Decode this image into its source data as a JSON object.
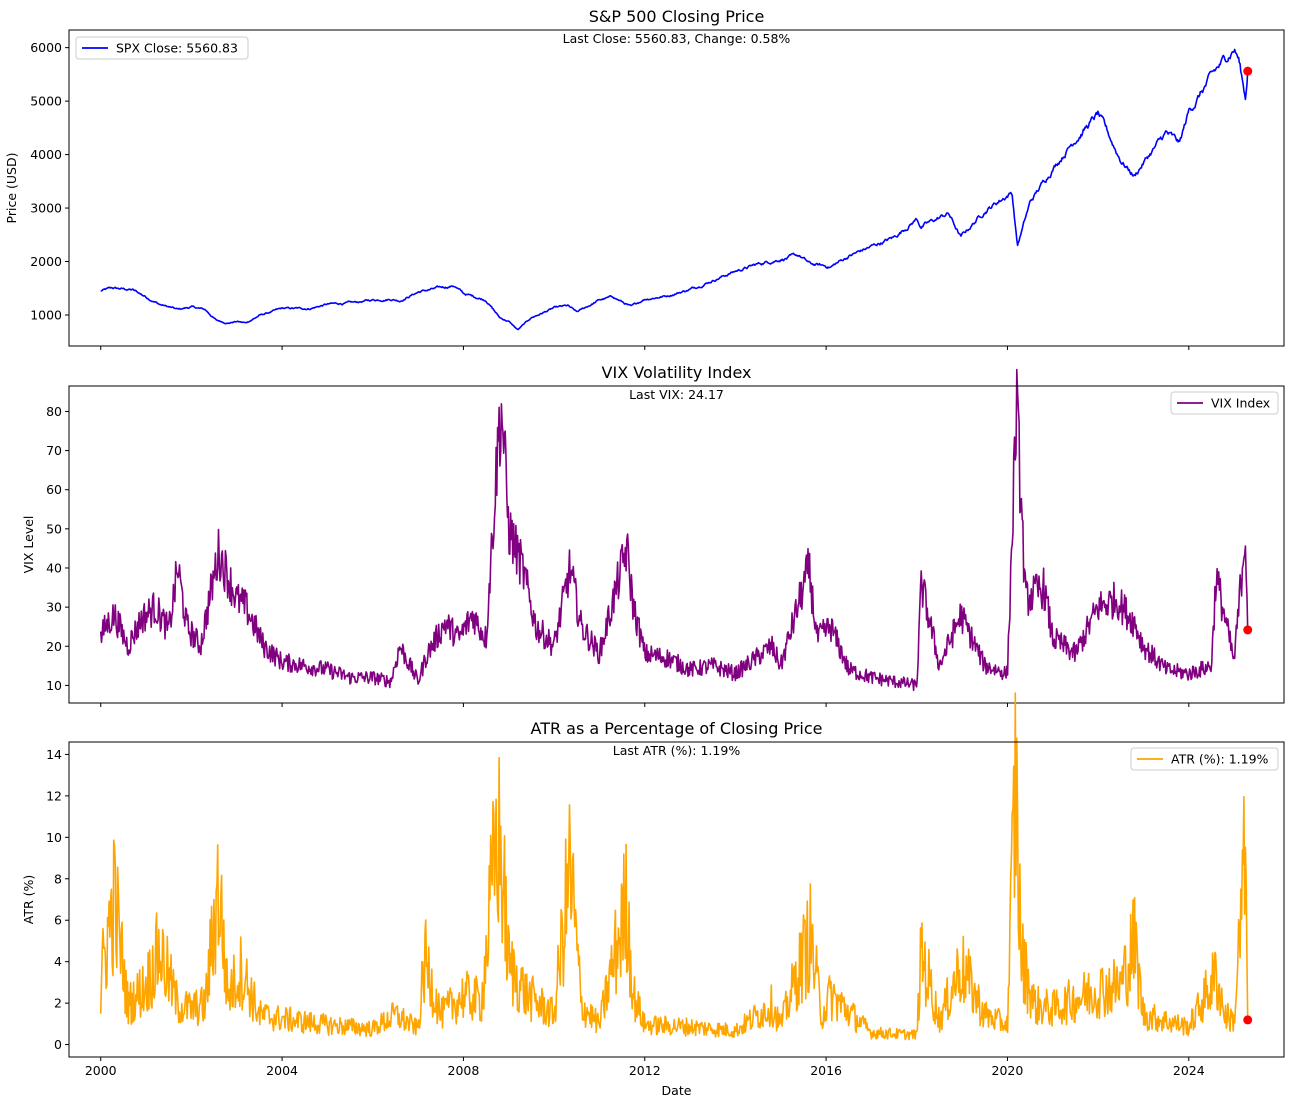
{
  "chart_data": [
    {
      "type": "line",
      "title": "S&P 500 Closing Price",
      "annotation": "Last Close: 5560.83, Change: 0.58%",
      "xlabel": "",
      "ylabel": "Price (USD)",
      "xlim": [
        1999.3,
        2026.1
      ],
      "ylim": [
        420,
        6330
      ],
      "yticks": [
        1000,
        2000,
        3000,
        4000,
        5000,
        6000
      ],
      "legend_position": "top-left",
      "grid": false,
      "color": "#0000ff",
      "marker_color": "#ff0000",
      "series": [
        {
          "name": "SPX Close: 5560.83",
          "x": [
            2000.0,
            2000.25,
            2000.7,
            2001.0,
            2001.3,
            2001.7,
            2002.0,
            2002.3,
            2002.55,
            2002.8,
            2003.0,
            2003.2,
            2003.5,
            2004.0,
            2004.6,
            2005.0,
            2005.6,
            2006.0,
            2006.4,
            2006.6,
            2007.0,
            2007.5,
            2007.8,
            2008.0,
            2008.5,
            2008.8,
            2009.0,
            2009.2,
            2009.5,
            2010.0,
            2010.3,
            2010.5,
            2011.0,
            2011.3,
            2011.7,
            2012.0,
            2012.5,
            2013.0,
            2013.5,
            2014.0,
            2014.5,
            2015.0,
            2015.4,
            2015.65,
            2016.1,
            2016.5,
            2017.0,
            2017.5,
            2018.0,
            2018.1,
            2018.7,
            2018.97,
            2019.5,
            2020.1,
            2020.22,
            2020.5,
            2021.0,
            2021.5,
            2022.0,
            2022.5,
            2022.8,
            2023.0,
            2023.5,
            2023.8,
            2024.0,
            2024.5,
            2025.0,
            2025.1,
            2025.25,
            2025.3
          ],
          "y": [
            1450,
            1500,
            1470,
            1340,
            1200,
            1100,
            1150,
            1100,
            900,
            850,
            880,
            850,
            990,
            1120,
            1120,
            1200,
            1230,
            1280,
            1300,
            1270,
            1430,
            1510,
            1550,
            1400,
            1280,
            950,
            880,
            720,
            950,
            1130,
            1170,
            1050,
            1280,
            1340,
            1150,
            1300,
            1360,
            1480,
            1650,
            1820,
            1950,
            2050,
            2110,
            1950,
            1900,
            2100,
            2280,
            2450,
            2800,
            2650,
            2900,
            2450,
            2950,
            3300,
            2300,
            3100,
            3750,
            4300,
            4750,
            3900,
            3600,
            3850,
            4400,
            4200,
            4800,
            5450,
            6000,
            5800,
            5050,
            5560.83
          ]
        }
      ],
      "last_point": {
        "x": 2025.3,
        "y": 5560.83
      }
    },
    {
      "type": "line",
      "title": "VIX Volatility Index",
      "annotation": "Last VIX: 24.17",
      "xlabel": "",
      "ylabel": "VIX Level",
      "xlim": [
        1999.3,
        2026.1
      ],
      "ylim": [
        5.5,
        86.5
      ],
      "yticks": [
        10,
        20,
        30,
        40,
        50,
        60,
        70,
        80
      ],
      "legend_position": "top-right",
      "grid": false,
      "color": "#800080",
      "marker_color": "#ff0000",
      "series": [
        {
          "name": "VIX Index",
          "x": [
            2000.0,
            2000.1,
            2000.3,
            2000.6,
            2000.9,
            2001.2,
            2001.5,
            2001.7,
            2001.9,
            2002.2,
            2002.6,
            2002.8,
            2003.0,
            2003.2,
            2003.6,
            2004.0,
            2004.5,
            2005.0,
            2005.5,
            2006.0,
            2006.4,
            2006.6,
            2007.0,
            2007.2,
            2007.6,
            2007.9,
            2008.2,
            2008.5,
            2008.78,
            2008.85,
            2009.0,
            2009.3,
            2009.6,
            2010.0,
            2010.35,
            2010.6,
            2011.0,
            2011.6,
            2011.75,
            2012.0,
            2012.5,
            2013.0,
            2013.5,
            2014.0,
            2014.8,
            2015.0,
            2015.62,
            2015.8,
            2016.1,
            2016.5,
            2017.0,
            2017.5,
            2018.0,
            2018.1,
            2018.5,
            2018.97,
            2019.5,
            2020.0,
            2020.2,
            2020.4,
            2020.8,
            2021.0,
            2021.5,
            2022.0,
            2022.4,
            2022.8,
            2023.0,
            2023.5,
            2024.0,
            2024.5,
            2024.6,
            2025.0,
            2025.25,
            2025.3
          ],
          "y": [
            22,
            25,
            28,
            20,
            27,
            30,
            24,
            40,
            25,
            20,
            44,
            38,
            32,
            30,
            20,
            16,
            15,
            14,
            12,
            12,
            11,
            20,
            11,
            18,
            26,
            22,
            28,
            22,
            75,
            80,
            50,
            40,
            25,
            20,
            40,
            25,
            18,
            45,
            30,
            18,
            17,
            14,
            15,
            13,
            20,
            15,
            40,
            22,
            25,
            14,
            12,
            11,
            10,
            36,
            15,
            28,
            15,
            13,
            82,
            32,
            35,
            22,
            18,
            30,
            32,
            26,
            20,
            14,
            13,
            15,
            38,
            16,
            50,
            24.17
          ]
        }
      ],
      "last_point": {
        "x": 2025.3,
        "y": 24.17
      }
    },
    {
      "type": "line",
      "title": "ATR as a Percentage of Closing Price",
      "annotation": "Last ATR (%): 1.19%",
      "xlabel": "Date",
      "ylabel": "ATR (%)",
      "xlim": [
        1999.3,
        2026.1
      ],
      "ylim": [
        -0.6,
        14.6
      ],
      "yticks": [
        0,
        2,
        4,
        6,
        8,
        10,
        12,
        14
      ],
      "xticks": [
        2000,
        2004,
        2008,
        2012,
        2016,
        2020,
        2024
      ],
      "legend_position": "top-right",
      "grid": false,
      "color": "#ffa500",
      "marker_color": "#ff0000",
      "series": [
        {
          "name": "ATR (%): 1.19%",
          "x": [
            2000.0,
            2000.05,
            2000.3,
            2000.6,
            2001.0,
            2001.3,
            2001.7,
            2002.0,
            2002.3,
            2002.6,
            2002.8,
            2003.1,
            2003.5,
            2004.0,
            2005.0,
            2006.0,
            2006.5,
            2007.0,
            2007.15,
            2007.5,
            2008.0,
            2008.4,
            2008.75,
            2008.85,
            2009.0,
            2009.4,
            2010.0,
            2010.35,
            2010.6,
            2011.0,
            2011.6,
            2011.75,
            2012.0,
            2013.0,
            2014.0,
            2014.8,
            2015.0,
            2015.65,
            2015.9,
            2016.1,
            2017.0,
            2018.0,
            2018.1,
            2018.5,
            2018.97,
            2019.5,
            2020.0,
            2020.18,
            2020.3,
            2020.6,
            2021.0,
            2022.0,
            2022.5,
            2022.8,
            2023.0,
            2024.0,
            2024.6,
            2024.8,
            2025.0,
            2025.25,
            2025.3
          ],
          "y": [
            2,
            4.1,
            7.4,
            2,
            3,
            4.8,
            2,
            1.8,
            2,
            8.1,
            2.5,
            3.8,
            1.5,
            1.3,
            1,
            0.8,
            1.5,
            0.8,
            4.3,
            1.5,
            2.5,
            2.2,
            10.7,
            9,
            4,
            2.5,
            1.5,
            9,
            2,
            1,
            7.2,
            2.5,
            1,
            0.9,
            0.7,
            2,
            1,
            5.5,
            1.5,
            2.5,
            0.6,
            0.5,
            4.7,
            1.2,
            4,
            1.5,
            1,
            13.8,
            4.5,
            2,
            1.8,
            2.8,
            3,
            5.2,
            1.5,
            0.9,
            3.5,
            1.5,
            1.2,
            9.7,
            1.19
          ]
        }
      ],
      "last_point": {
        "x": 2025.3,
        "y": 1.19
      }
    }
  ]
}
